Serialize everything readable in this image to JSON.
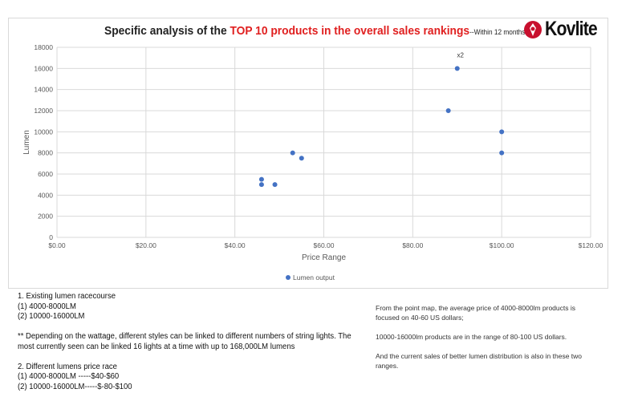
{
  "title": {
    "prefix": "Specific analysis of the ",
    "highlight": "TOP 10 products in the overall sales rankings",
    "suffix": "--Within 12 months"
  },
  "logo": {
    "text": "Kovlite"
  },
  "colors": {
    "marker": "#4472c4",
    "highlight": "#e02020",
    "grid": "#d9d9d9"
  },
  "chart_data": {
    "type": "scatter",
    "xlabel": "Price Range",
    "ylabel": "Lumen",
    "xlim": [
      0,
      120
    ],
    "ylim": [
      0,
      18000
    ],
    "xticks": [
      0,
      20,
      40,
      60,
      80,
      100,
      120
    ],
    "xtick_labels": [
      "$0.00",
      "$20.00",
      "$40.00",
      "$60.00",
      "$80.00",
      "$100.00",
      "$120.00"
    ],
    "yticks": [
      0,
      2000,
      4000,
      6000,
      8000,
      10000,
      12000,
      14000,
      16000,
      18000
    ],
    "grid": true,
    "legend": "bottom",
    "series": [
      {
        "name": "Lumen output",
        "points": [
          {
            "x": 46,
            "y": 5500
          },
          {
            "x": 46,
            "y": 5000
          },
          {
            "x": 49,
            "y": 5000
          },
          {
            "x": 53,
            "y": 8000
          },
          {
            "x": 55,
            "y": 7500
          },
          {
            "x": 88,
            "y": 12000
          },
          {
            "x": 90,
            "y": 16000,
            "label": "x2"
          },
          {
            "x": 100,
            "y": 10000
          },
          {
            "x": 100,
            "y": 8000
          }
        ]
      }
    ]
  },
  "notes": {
    "lines": [
      "1. Existing lumen racecourse",
      "(1) 4000-8000LM",
      "(2) 10000-16000LM",
      "",
      "** Depending on the wattage, different styles can be linked to different numbers of string lights. The",
      "most currently seen can be linked 16 lights at a time with up to 168,000LM lumens",
      "",
      "2. Different lumens price race",
      "(1) 4000-8000LM -----$40-$60",
      "(2) 10000-16000LM-----$-80-$100"
    ]
  },
  "summary": {
    "p1a": "From the point map, the average price of 4000-8000lm products is",
    "p1b": "focused on 40-60 US dollars;",
    "p2": "10000-16000lm products are in the range of 80-100 US dollars.",
    "p3a": "And the current sales of better lumen distribution is also in these two",
    "p3b": "ranges."
  }
}
